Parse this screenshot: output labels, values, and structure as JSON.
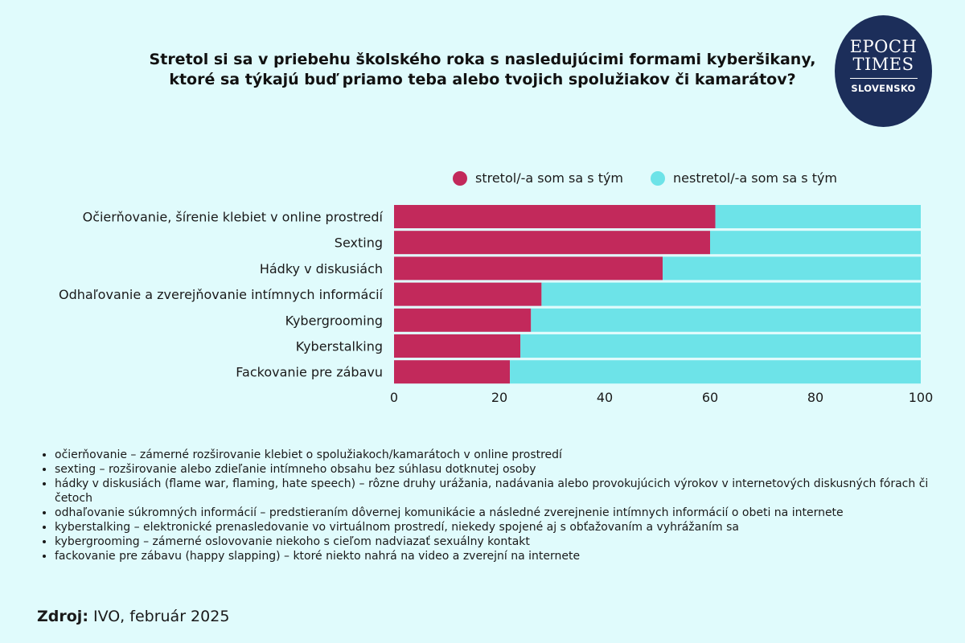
{
  "title_line1": "Stretol si sa v priebehu školského roka s nasledujúcimi formami kyberšikany,",
  "title_line2": "ktoré sa týkajú buď priamo teba alebo tvojich spolužiakov či kamarátov?",
  "logo": {
    "line1": "EPOCH",
    "line2": "TIMES",
    "line3": "SLOVENSKO",
    "bg_color": "#1c2e5a"
  },
  "chart_data": {
    "type": "bar",
    "orientation": "horizontal",
    "stacked": true,
    "categories": [
      "Očierňovanie, šírenie klebiet v online prostredí",
      "Sexting",
      "Hádky v diskusiách",
      "Odhaľovanie a zverejňovanie intímnych informácií",
      "Kybergrooming",
      "Kyberstalking",
      "Fackovanie pre zábavu"
    ],
    "series": [
      {
        "name": "stretol/-a som sa s tým",
        "values": [
          61,
          60,
          51,
          28,
          26,
          24,
          22
        ],
        "color": "#c2295b"
      },
      {
        "name": "nestretol/-a som sa s tým",
        "values": [
          39,
          40,
          49,
          72,
          74,
          76,
          78
        ],
        "color": "#6de3e8"
      }
    ],
    "xlim": [
      0,
      100
    ],
    "xticks": [
      0,
      20,
      40,
      60,
      80,
      100
    ],
    "legend_position": "top",
    "grid": false
  },
  "notes": [
    "očierňovanie – zámerné rozširovanie klebiet o spolužiakoch/kamarátoch v online prostredí",
    "sexting – rozširovanie alebo zdieľanie intímneho obsahu bez súhlasu dotknutej osoby",
    "hádky v diskusiách (flame war, flaming, hate speech) – rôzne druhy urážania, nadávania alebo provokujúcich výrokov v internetových diskusných fórach či četoch",
    "odhaľovanie súkromných informácií – predstieraním dôvernej komunikácie a následné zverejnenie intímnych informácií o obeti na internete",
    "kyberstalking – elektronické prenasledovanie vo virtuálnom prostredí, niekedy spojené aj s obťažovaním a vyhrážaním sa",
    "kybergrooming – zámerné oslovovanie niekoho s cieľom nadviazať sexuálny kontakt",
    "fackovanie pre zábavu (happy slapping) – ktoré niekto nahrá na video a zverejní na internete"
  ],
  "source": {
    "label": "Zdroj:",
    "text": " IVO, február 2025"
  }
}
